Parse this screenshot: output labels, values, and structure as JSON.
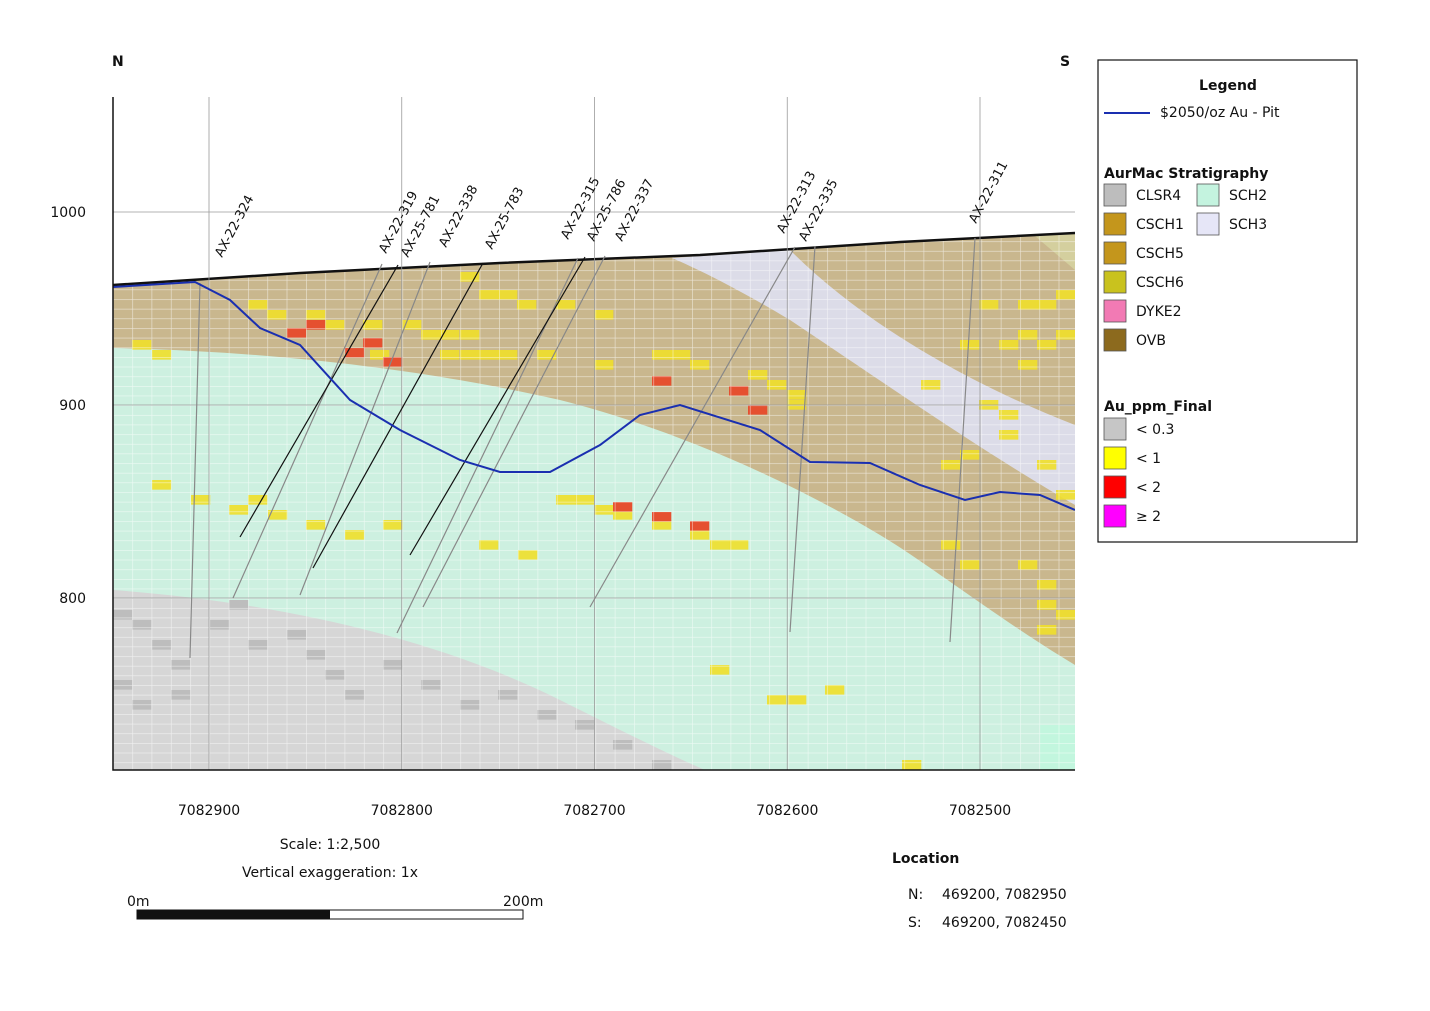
{
  "header": {
    "north": "N",
    "south": "S"
  },
  "axes": {
    "yticks": [
      1000,
      900,
      800
    ],
    "xticks": [
      7082900,
      7082800,
      7082700,
      7082600,
      7082500
    ]
  },
  "drillholes": [
    {
      "label": "AX-22-324"
    },
    {
      "label": "AX-22-319"
    },
    {
      "label": "AX-25-781"
    },
    {
      "label": "AX-22-338"
    },
    {
      "label": "AX-25-783"
    },
    {
      "label": "AX-22-315"
    },
    {
      "label": "AX-25-786"
    },
    {
      "label": "AX-22-337"
    },
    {
      "label": "AX-22-313"
    },
    {
      "label": "AX-22-335"
    },
    {
      "label": "AX-22-311"
    }
  ],
  "legend": {
    "title": "Legend",
    "pit": "$2050/oz Au - Pit",
    "stratigraphy_title": "AurMac Stratigraphy",
    "stratigraphy": [
      {
        "label": "CLSR4",
        "color": "#bdbdbd"
      },
      {
        "label": "CSCH1",
        "color": "#c4961c"
      },
      {
        "label": "CSCH5",
        "color": "#c4961c"
      },
      {
        "label": "CSCH6",
        "color": "#c9c21e"
      },
      {
        "label": "DYKE2",
        "color": "#f27ab4"
      },
      {
        "label": "OVB",
        "color": "#8c6a1e"
      },
      {
        "label": "SCH2",
        "color": "#c4f3df"
      },
      {
        "label": "SCH3",
        "color": "#e6e6f7"
      }
    ],
    "au_title": "Au_ppm_Final",
    "au": [
      {
        "label": "< 0.3",
        "color": "#c6c6c6"
      },
      {
        "label": "< 1",
        "color": "#ffff00"
      },
      {
        "label": "< 2",
        "color": "#ff0000"
      },
      {
        "label": "≥ 2",
        "color": "#ff00ff"
      }
    ]
  },
  "scale": {
    "ratio": "Scale: 1:2,500",
    "exaggeration": "Vertical exaggeration: 1x",
    "start": "0m",
    "end": "200m"
  },
  "location": {
    "title": "Location",
    "n_key": "N:",
    "n_value": "469200, 7082950",
    "s_key": "S:",
    "s_value": "469200, 7082450"
  }
}
